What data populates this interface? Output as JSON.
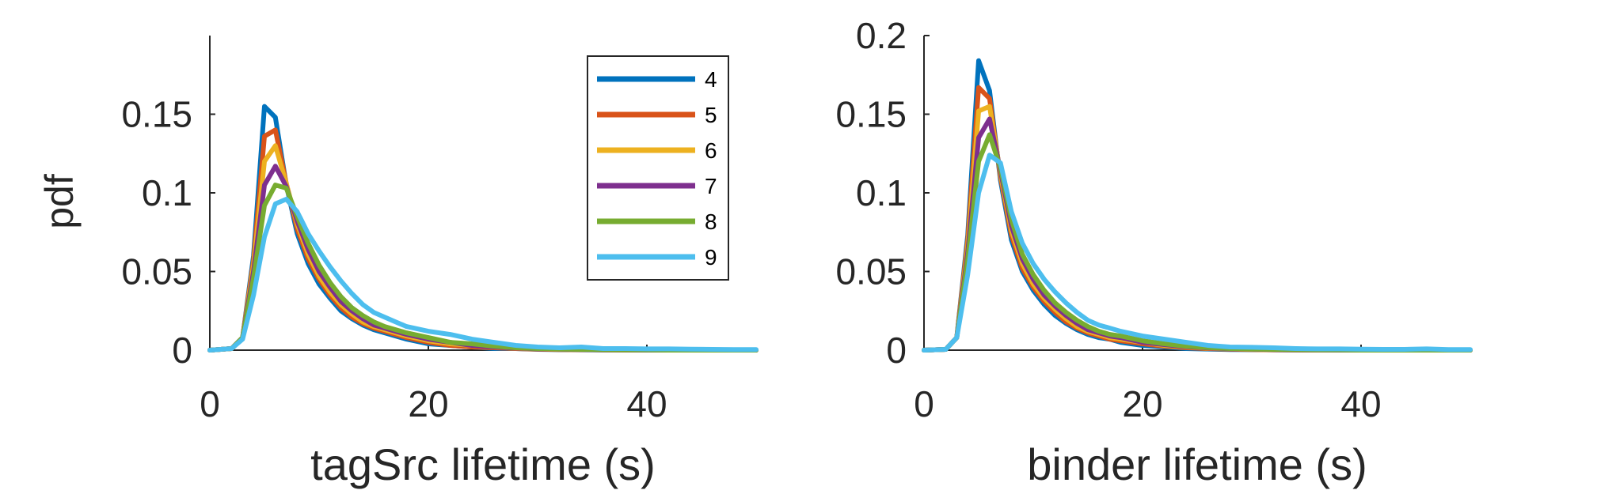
{
  "chart_data": [
    {
      "type": "line",
      "xlabel": "tagSrc lifetime (s)",
      "ylabel": "pdf",
      "xlim": [
        0,
        50
      ],
      "ylim": [
        0,
        0.2
      ],
      "xticks": [
        "0",
        "20",
        "40"
      ],
      "yticks": [
        "0",
        "0.05",
        "0.1",
        "0.15"
      ],
      "legend": "top-right",
      "x": [
        0,
        2,
        3,
        4,
        5,
        6,
        7,
        8,
        9,
        10,
        11,
        12,
        13,
        14,
        15,
        16,
        17,
        18,
        20,
        22,
        24,
        26,
        28,
        30,
        32,
        34,
        36,
        38,
        40,
        42,
        44,
        46,
        48,
        50
      ],
      "series": [
        {
          "name": "4",
          "color": "#0072BD",
          "values": [
            0,
            0.001,
            0.008,
            0.06,
            0.155,
            0.148,
            0.105,
            0.074,
            0.055,
            0.042,
            0.033,
            0.025,
            0.02,
            0.016,
            0.013,
            0.011,
            0.009,
            0.007,
            0.004,
            0.003,
            0.002,
            0.001,
            0.001,
            0.0005,
            0.0003,
            0.0002,
            0.0001,
            0.0001,
            0,
            0,
            0,
            0,
            0,
            0
          ]
        },
        {
          "name": "5",
          "color": "#D95319",
          "values": [
            0,
            0.001,
            0.008,
            0.057,
            0.136,
            0.14,
            0.106,
            0.077,
            0.058,
            0.045,
            0.035,
            0.027,
            0.021,
            0.017,
            0.014,
            0.012,
            0.01,
            0.008,
            0.005,
            0.003,
            0.002,
            0.0015,
            0.001,
            0.0006,
            0.0004,
            0.0003,
            0.0002,
            0.0001,
            0,
            0,
            0,
            0,
            0,
            0
          ]
        },
        {
          "name": "6",
          "color": "#EDB120",
          "values": [
            0,
            0.001,
            0.008,
            0.054,
            0.12,
            0.13,
            0.106,
            0.08,
            0.061,
            0.047,
            0.037,
            0.029,
            0.023,
            0.018,
            0.015,
            0.013,
            0.011,
            0.009,
            0.006,
            0.004,
            0.003,
            0.002,
            0.0012,
            0.0008,
            0.0005,
            0.0003,
            0.0002,
            0.0001,
            0,
            0,
            0,
            0,
            0,
            0
          ]
        },
        {
          "name": "7",
          "color": "#7E2F8E",
          "values": [
            0,
            0.001,
            0.008,
            0.05,
            0.105,
            0.117,
            0.104,
            0.082,
            0.064,
            0.05,
            0.04,
            0.031,
            0.025,
            0.02,
            0.016,
            0.014,
            0.012,
            0.01,
            0.007,
            0.005,
            0.003,
            0.002,
            0.0013,
            0.0009,
            0.0006,
            0.0004,
            0.0002,
            0.0001,
            0,
            0,
            0,
            0,
            0,
            0
          ]
        },
        {
          "name": "8",
          "color": "#77AC30",
          "values": [
            0,
            0.001,
            0.008,
            0.046,
            0.092,
            0.105,
            0.103,
            0.085,
            0.068,
            0.054,
            0.043,
            0.034,
            0.027,
            0.022,
            0.018,
            0.015,
            0.013,
            0.011,
            0.008,
            0.005,
            0.004,
            0.0025,
            0.0015,
            0.001,
            0.0007,
            0.0005,
            0.0003,
            0.0002,
            0.0001,
            0,
            0,
            0,
            0,
            0
          ]
        },
        {
          "name": "9",
          "color": "#4DBEEE",
          "values": [
            0,
            0.001,
            0.007,
            0.035,
            0.072,
            0.093,
            0.096,
            0.088,
            0.074,
            0.063,
            0.053,
            0.044,
            0.036,
            0.029,
            0.024,
            0.021,
            0.018,
            0.015,
            0.012,
            0.01,
            0.007,
            0.005,
            0.003,
            0.002,
            0.0015,
            0.002,
            0.001,
            0.001,
            0.0008,
            0.0008,
            0.0006,
            0.0005,
            0.0004,
            0.0004
          ]
        }
      ]
    },
    {
      "type": "line",
      "xlabel": "binder lifetime (s)",
      "ylabel": "",
      "xlim": [
        0,
        50
      ],
      "ylim": [
        0,
        0.2
      ],
      "xticks": [
        "0",
        "20",
        "40"
      ],
      "yticks": [
        "0",
        "0.05",
        "0.1",
        "0.15",
        "0.2"
      ],
      "x": [
        0,
        2,
        3,
        4,
        5,
        6,
        7,
        8,
        9,
        10,
        11,
        12,
        13,
        14,
        15,
        16,
        17,
        18,
        20,
        22,
        24,
        26,
        28,
        30,
        32,
        34,
        36,
        38,
        40,
        42,
        44,
        46,
        48,
        50
      ],
      "series": [
        {
          "name": "4",
          "color": "#0072BD",
          "values": [
            0,
            0.0005,
            0.008,
            0.073,
            0.184,
            0.165,
            0.108,
            0.07,
            0.05,
            0.038,
            0.029,
            0.022,
            0.017,
            0.013,
            0.01,
            0.008,
            0.007,
            0.005,
            0.003,
            0.002,
            0.001,
            0.0007,
            0.0004,
            0.0003,
            0.0002,
            0.0001,
            0,
            0,
            0,
            0,
            0,
            0,
            0,
            0
          ]
        },
        {
          "name": "5",
          "color": "#D95319",
          "values": [
            0,
            0.0005,
            0.008,
            0.07,
            0.167,
            0.16,
            0.11,
            0.073,
            0.052,
            0.04,
            0.031,
            0.024,
            0.018,
            0.014,
            0.011,
            0.009,
            0.007,
            0.006,
            0.004,
            0.0025,
            0.0015,
            0.001,
            0.0006,
            0.0004,
            0.0002,
            0.0001,
            0,
            0,
            0,
            0,
            0,
            0,
            0,
            0
          ]
        },
        {
          "name": "6",
          "color": "#EDB120",
          "values": [
            0,
            0.0005,
            0.008,
            0.066,
            0.152,
            0.155,
            0.112,
            0.076,
            0.055,
            0.042,
            0.033,
            0.026,
            0.02,
            0.015,
            0.012,
            0.01,
            0.008,
            0.007,
            0.005,
            0.003,
            0.002,
            0.0012,
            0.0008,
            0.0005,
            0.0003,
            0.0002,
            0.0001,
            0,
            0,
            0,
            0,
            0,
            0,
            0
          ]
        },
        {
          "name": "7",
          "color": "#7E2F8E",
          "values": [
            0,
            0.0005,
            0.008,
            0.062,
            0.135,
            0.147,
            0.114,
            0.079,
            0.058,
            0.045,
            0.035,
            0.028,
            0.022,
            0.017,
            0.013,
            0.011,
            0.009,
            0.008,
            0.005,
            0.0035,
            0.0022,
            0.0014,
            0.0009,
            0.0006,
            0.0004,
            0.0002,
            0.0001,
            0,
            0,
            0,
            0,
            0,
            0,
            0
          ]
        },
        {
          "name": "8",
          "color": "#77AC30",
          "values": [
            0,
            0.0005,
            0.008,
            0.058,
            0.12,
            0.137,
            0.116,
            0.083,
            0.061,
            0.048,
            0.038,
            0.03,
            0.024,
            0.019,
            0.015,
            0.012,
            0.01,
            0.009,
            0.006,
            0.004,
            0.0025,
            0.0016,
            0.001,
            0.0007,
            0.0005,
            0.0003,
            0.0002,
            0.0001,
            0,
            0,
            0,
            0,
            0,
            0
          ]
        },
        {
          "name": "9",
          "color": "#4DBEEE",
          "values": [
            0,
            0.0005,
            0.008,
            0.048,
            0.1,
            0.124,
            0.119,
            0.088,
            0.068,
            0.055,
            0.045,
            0.037,
            0.03,
            0.024,
            0.019,
            0.016,
            0.014,
            0.012,
            0.009,
            0.007,
            0.005,
            0.003,
            0.002,
            0.0018,
            0.0015,
            0.001,
            0.0008,
            0.0008,
            0.0006,
            0.0005,
            0.0005,
            0.0008,
            0.0004,
            0.0004
          ]
        }
      ]
    }
  ]
}
